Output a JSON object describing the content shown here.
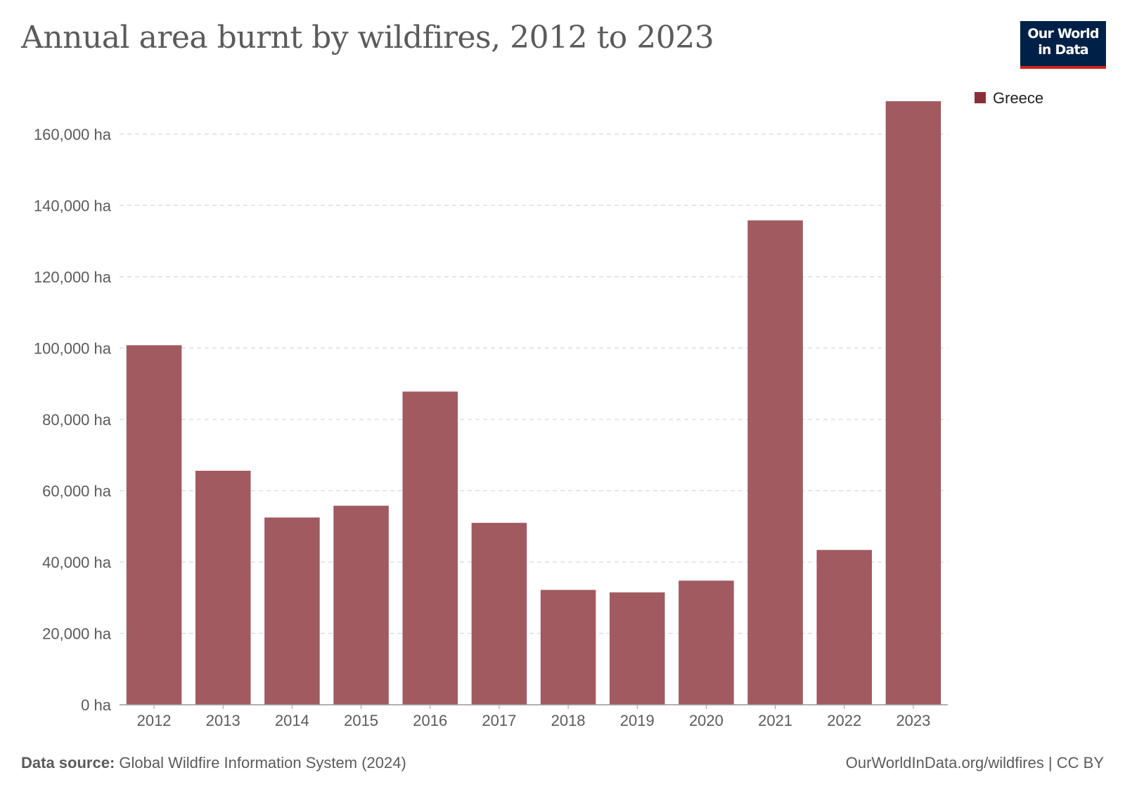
{
  "title": "Annual area burnt by wildfires, 2012 to 2023",
  "logo": {
    "line1": "Our World",
    "line2": "in Data"
  },
  "footer": {
    "source_label": "Data source:",
    "source_text": "Global Wildfire Information System (2024)",
    "link": "OurWorldInData.org/wildfires | CC BY"
  },
  "colors": {
    "bar": "#a05a60",
    "legend_swatch": "#883039",
    "grid": "#dddddd",
    "axis": "#999999",
    "logo_bg": "#002147",
    "logo_accent": "#ce261e"
  },
  "chart_data": {
    "type": "bar",
    "categories": [
      "2012",
      "2013",
      "2014",
      "2015",
      "2016",
      "2017",
      "2018",
      "2019",
      "2020",
      "2021",
      "2022",
      "2023"
    ],
    "series": [
      {
        "name": "Greece",
        "values": [
          100800,
          65600,
          52500,
          55800,
          87800,
          51000,
          32200,
          31500,
          34800,
          135800,
          43400,
          169200
        ]
      }
    ],
    "ylim": [
      0,
      170000
    ],
    "yticks": [
      0,
      20000,
      40000,
      60000,
      80000,
      100000,
      120000,
      140000,
      160000
    ],
    "ytick_labels": [
      "0 ha",
      "20,000 ha",
      "40,000 ha",
      "60,000 ha",
      "80,000 ha",
      "100,000 ha",
      "120,000 ha",
      "140,000 ha",
      "160,000 ha"
    ],
    "grid": true,
    "legend_position": "top-right"
  }
}
